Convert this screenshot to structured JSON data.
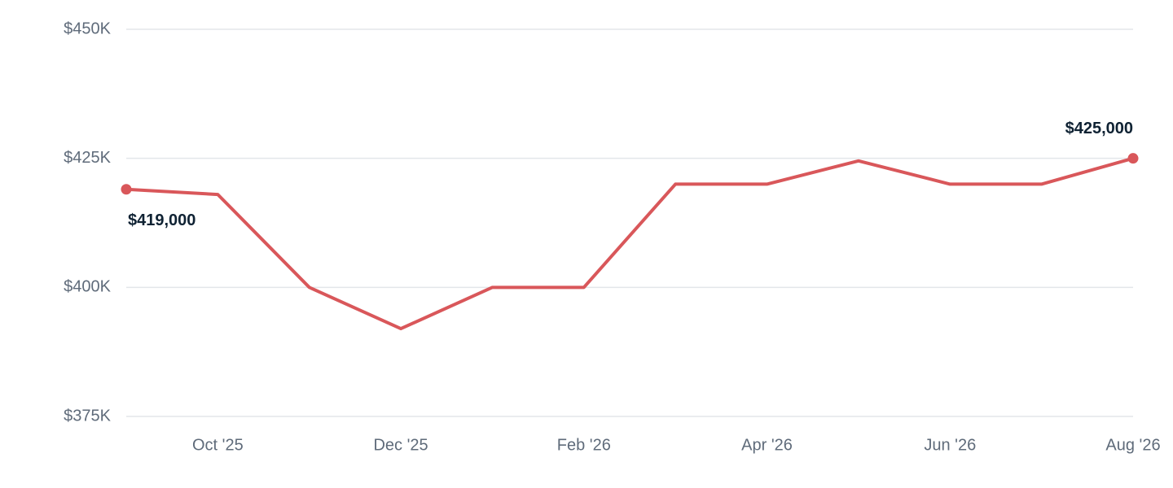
{
  "chart_data": {
    "type": "line",
    "categories": [
      null,
      "Oct '25",
      null,
      "Dec '25",
      null,
      "Feb '26",
      null,
      "Apr '26",
      null,
      "Jun '26",
      null,
      "Aug '26"
    ],
    "series": [
      {
        "color": "#d9575a",
        "values": [
          419000,
          418000,
          400000,
          392000,
          400000,
          400000,
          420000,
          420000,
          424500,
          420000,
          420000,
          425000
        ],
        "value_labels": [
          "$419,000",
          null,
          null,
          null,
          null,
          null,
          null,
          null,
          null,
          null,
          null,
          "$425,000"
        ]
      }
    ],
    "ylim": [
      375000,
      450000
    ],
    "yticks": [
      {
        "value": 375000,
        "label": "$375K"
      },
      {
        "value": 400000,
        "label": "$400K"
      },
      {
        "value": 425000,
        "label": "$425K"
      },
      {
        "value": 450000,
        "label": "$450K"
      }
    ],
    "grid": true
  }
}
